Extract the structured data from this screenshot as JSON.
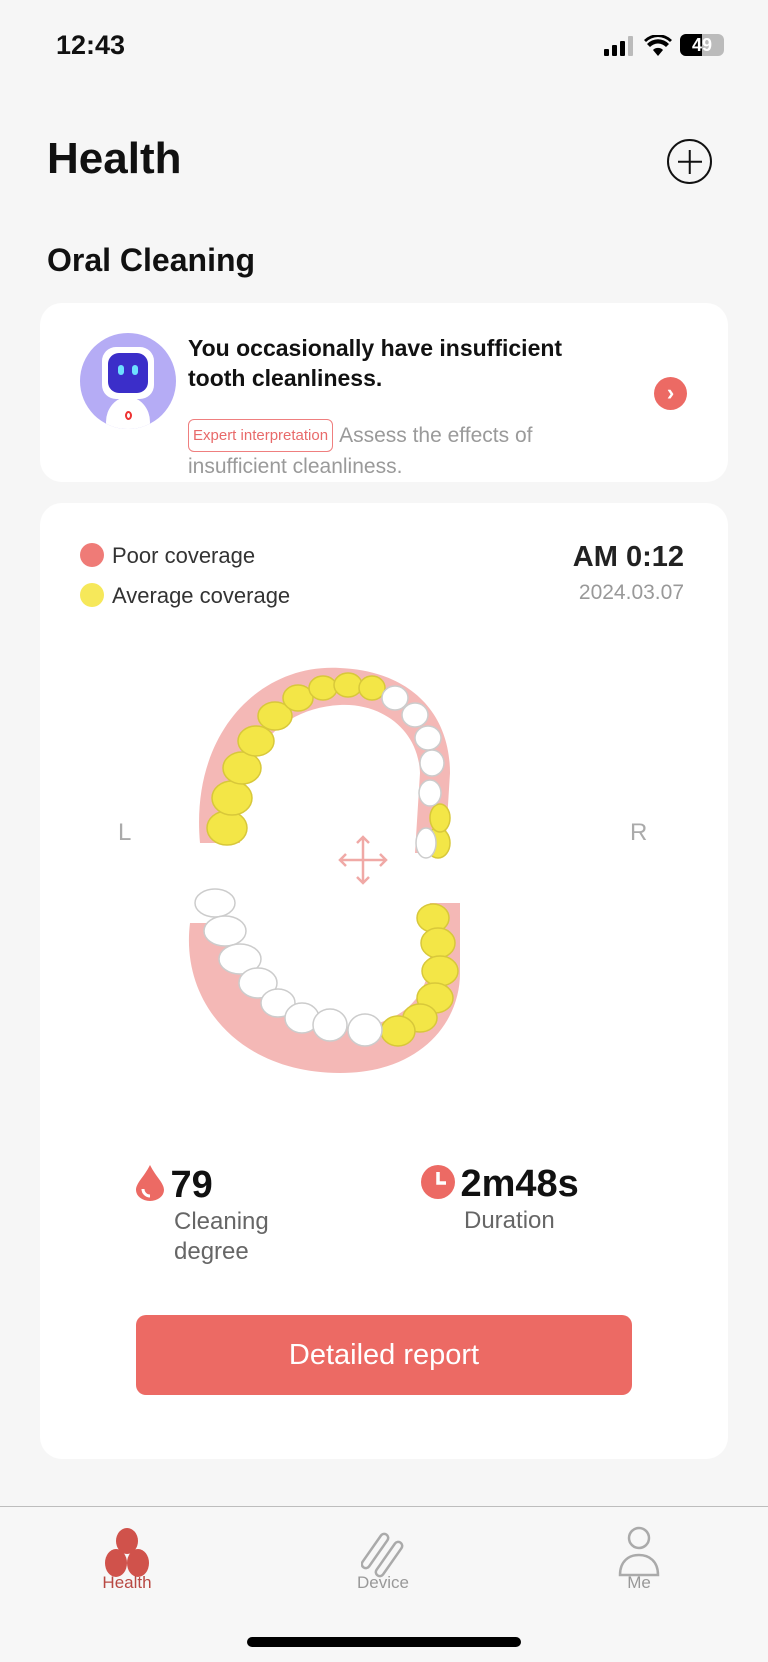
{
  "status_bar": {
    "time": "12:43",
    "battery": "49"
  },
  "header": {
    "title": "Health",
    "add_icon": "plus-circle-icon"
  },
  "section_title": "Oral Cleaning",
  "insight_card": {
    "message": "You occasionally have insufficient tooth cleanliness.",
    "tag": "Expert interpretation",
    "detail": "Assess the effects of insufficient cleanliness."
  },
  "report_card": {
    "legend": [
      {
        "label": "Poor coverage",
        "color": "#ef7b77"
      },
      {
        "label": "Average coverage",
        "color": "#f6e85a"
      }
    ],
    "time": "AM 0:12",
    "date": "2024.03.07",
    "left_label": "L",
    "right_label": "R",
    "stats": [
      {
        "value": "79",
        "label": "Cleaning degree",
        "icon": "drop-icon"
      },
      {
        "value": "2m48s",
        "label": "Duration",
        "icon": "clock-icon"
      }
    ],
    "button": "Detailed report"
  },
  "tabs": [
    {
      "label": "Health",
      "active": true
    },
    {
      "label": "Device",
      "active": false
    },
    {
      "label": "Me",
      "active": false
    }
  ],
  "colors": {
    "accent": "#ec6a64",
    "tab_active": "#b84842"
  }
}
